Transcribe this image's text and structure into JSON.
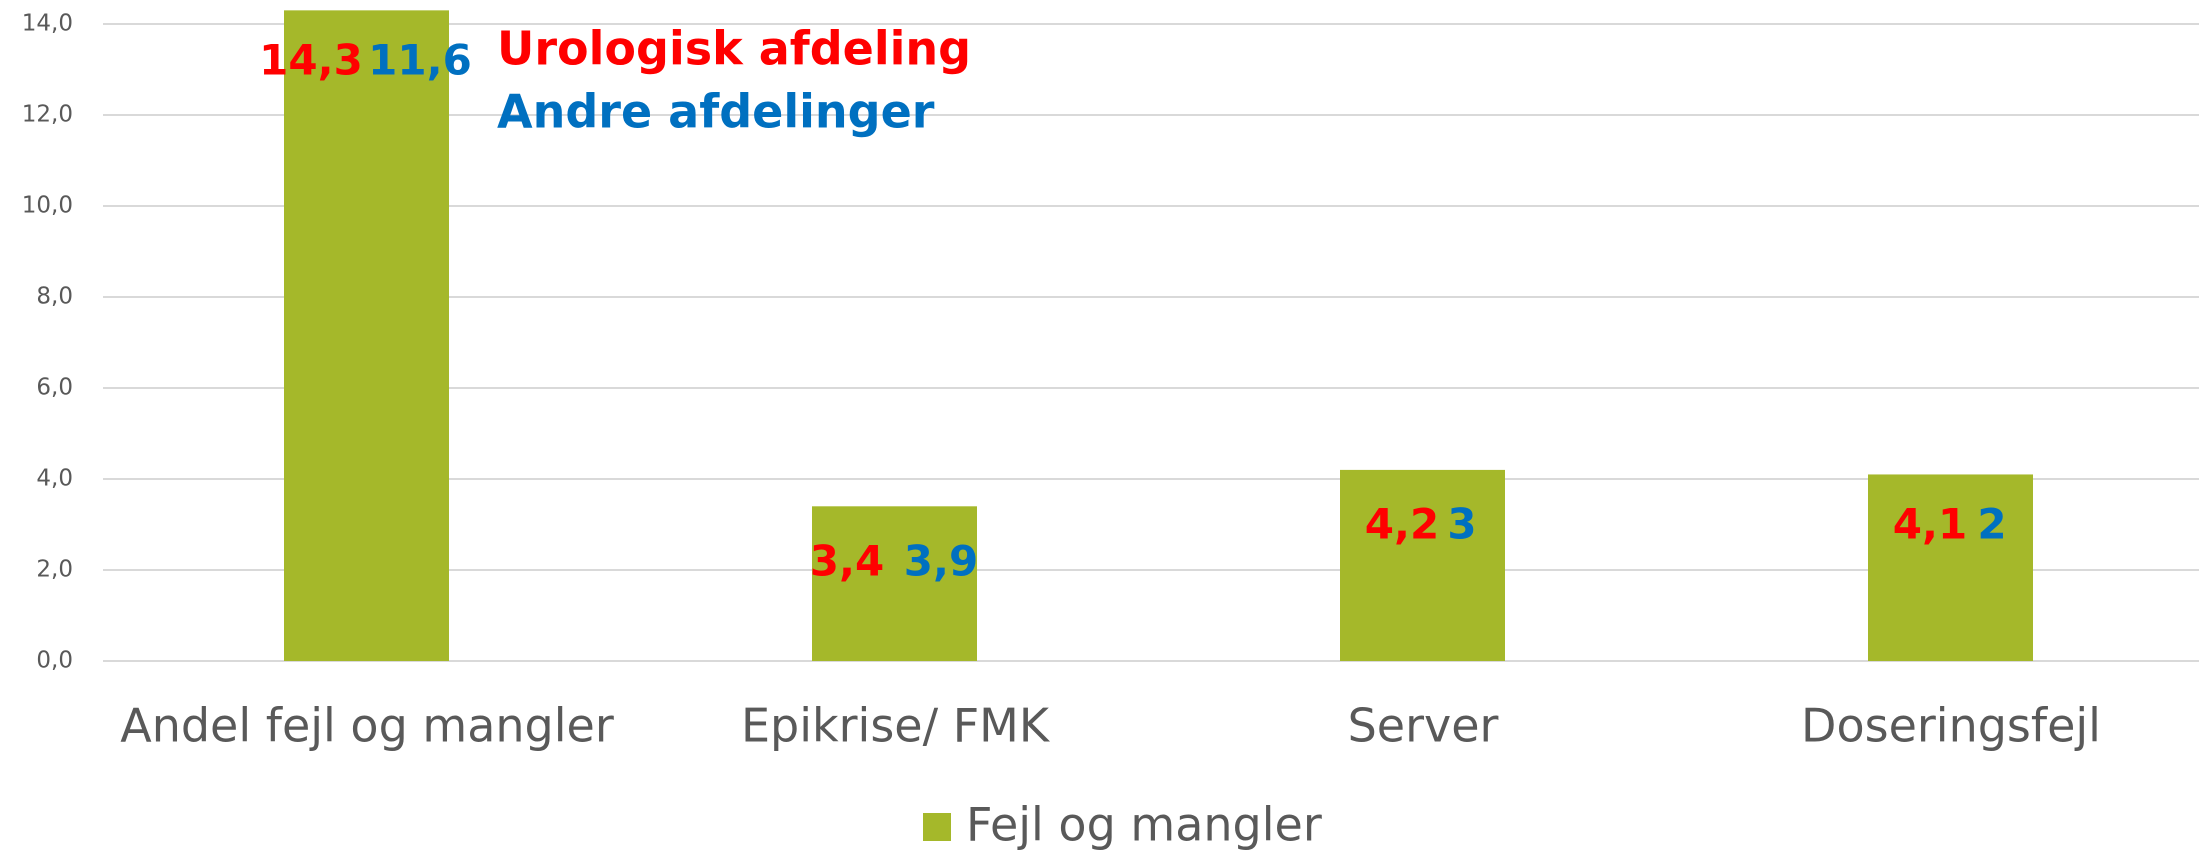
{
  "chart_data": {
    "type": "bar",
    "categories": [
      "Andel fejl og mangler",
      "Epikrise/ FMK",
      "Server",
      "Doseringsfejl"
    ],
    "series": [
      {
        "name": "Fejl og mangler",
        "color": "#a5b82a",
        "values": [
          14.3,
          3.4,
          4.2,
          4.1
        ],
        "value_labels": [
          "14,3",
          "3,4",
          "4,2",
          "4,1"
        ]
      }
    ],
    "annotations": [
      {
        "text": "Urologisk afdeling",
        "color": "#ff0000"
      },
      {
        "text": "Andre afdelinger",
        "color": "#0070c0",
        "values": [
          11.6,
          3.9,
          3,
          2
        ],
        "value_labels": [
          "11,6",
          "3,9",
          "3",
          "2"
        ]
      }
    ],
    "ylim": [
      0,
      14
    ],
    "yticks": [
      {
        "value": 0,
        "label": "0,0"
      },
      {
        "value": 2,
        "label": "2,0"
      },
      {
        "value": 4,
        "label": "4,0"
      },
      {
        "value": 6,
        "label": "6,0"
      },
      {
        "value": 8,
        "label": "8,0"
      },
      {
        "value": 10,
        "label": "10,0"
      },
      {
        "value": 12,
        "label": "12,0"
      },
      {
        "value": 14,
        "label": "14,0"
      }
    ],
    "grid": true,
    "legend": "bottom"
  }
}
